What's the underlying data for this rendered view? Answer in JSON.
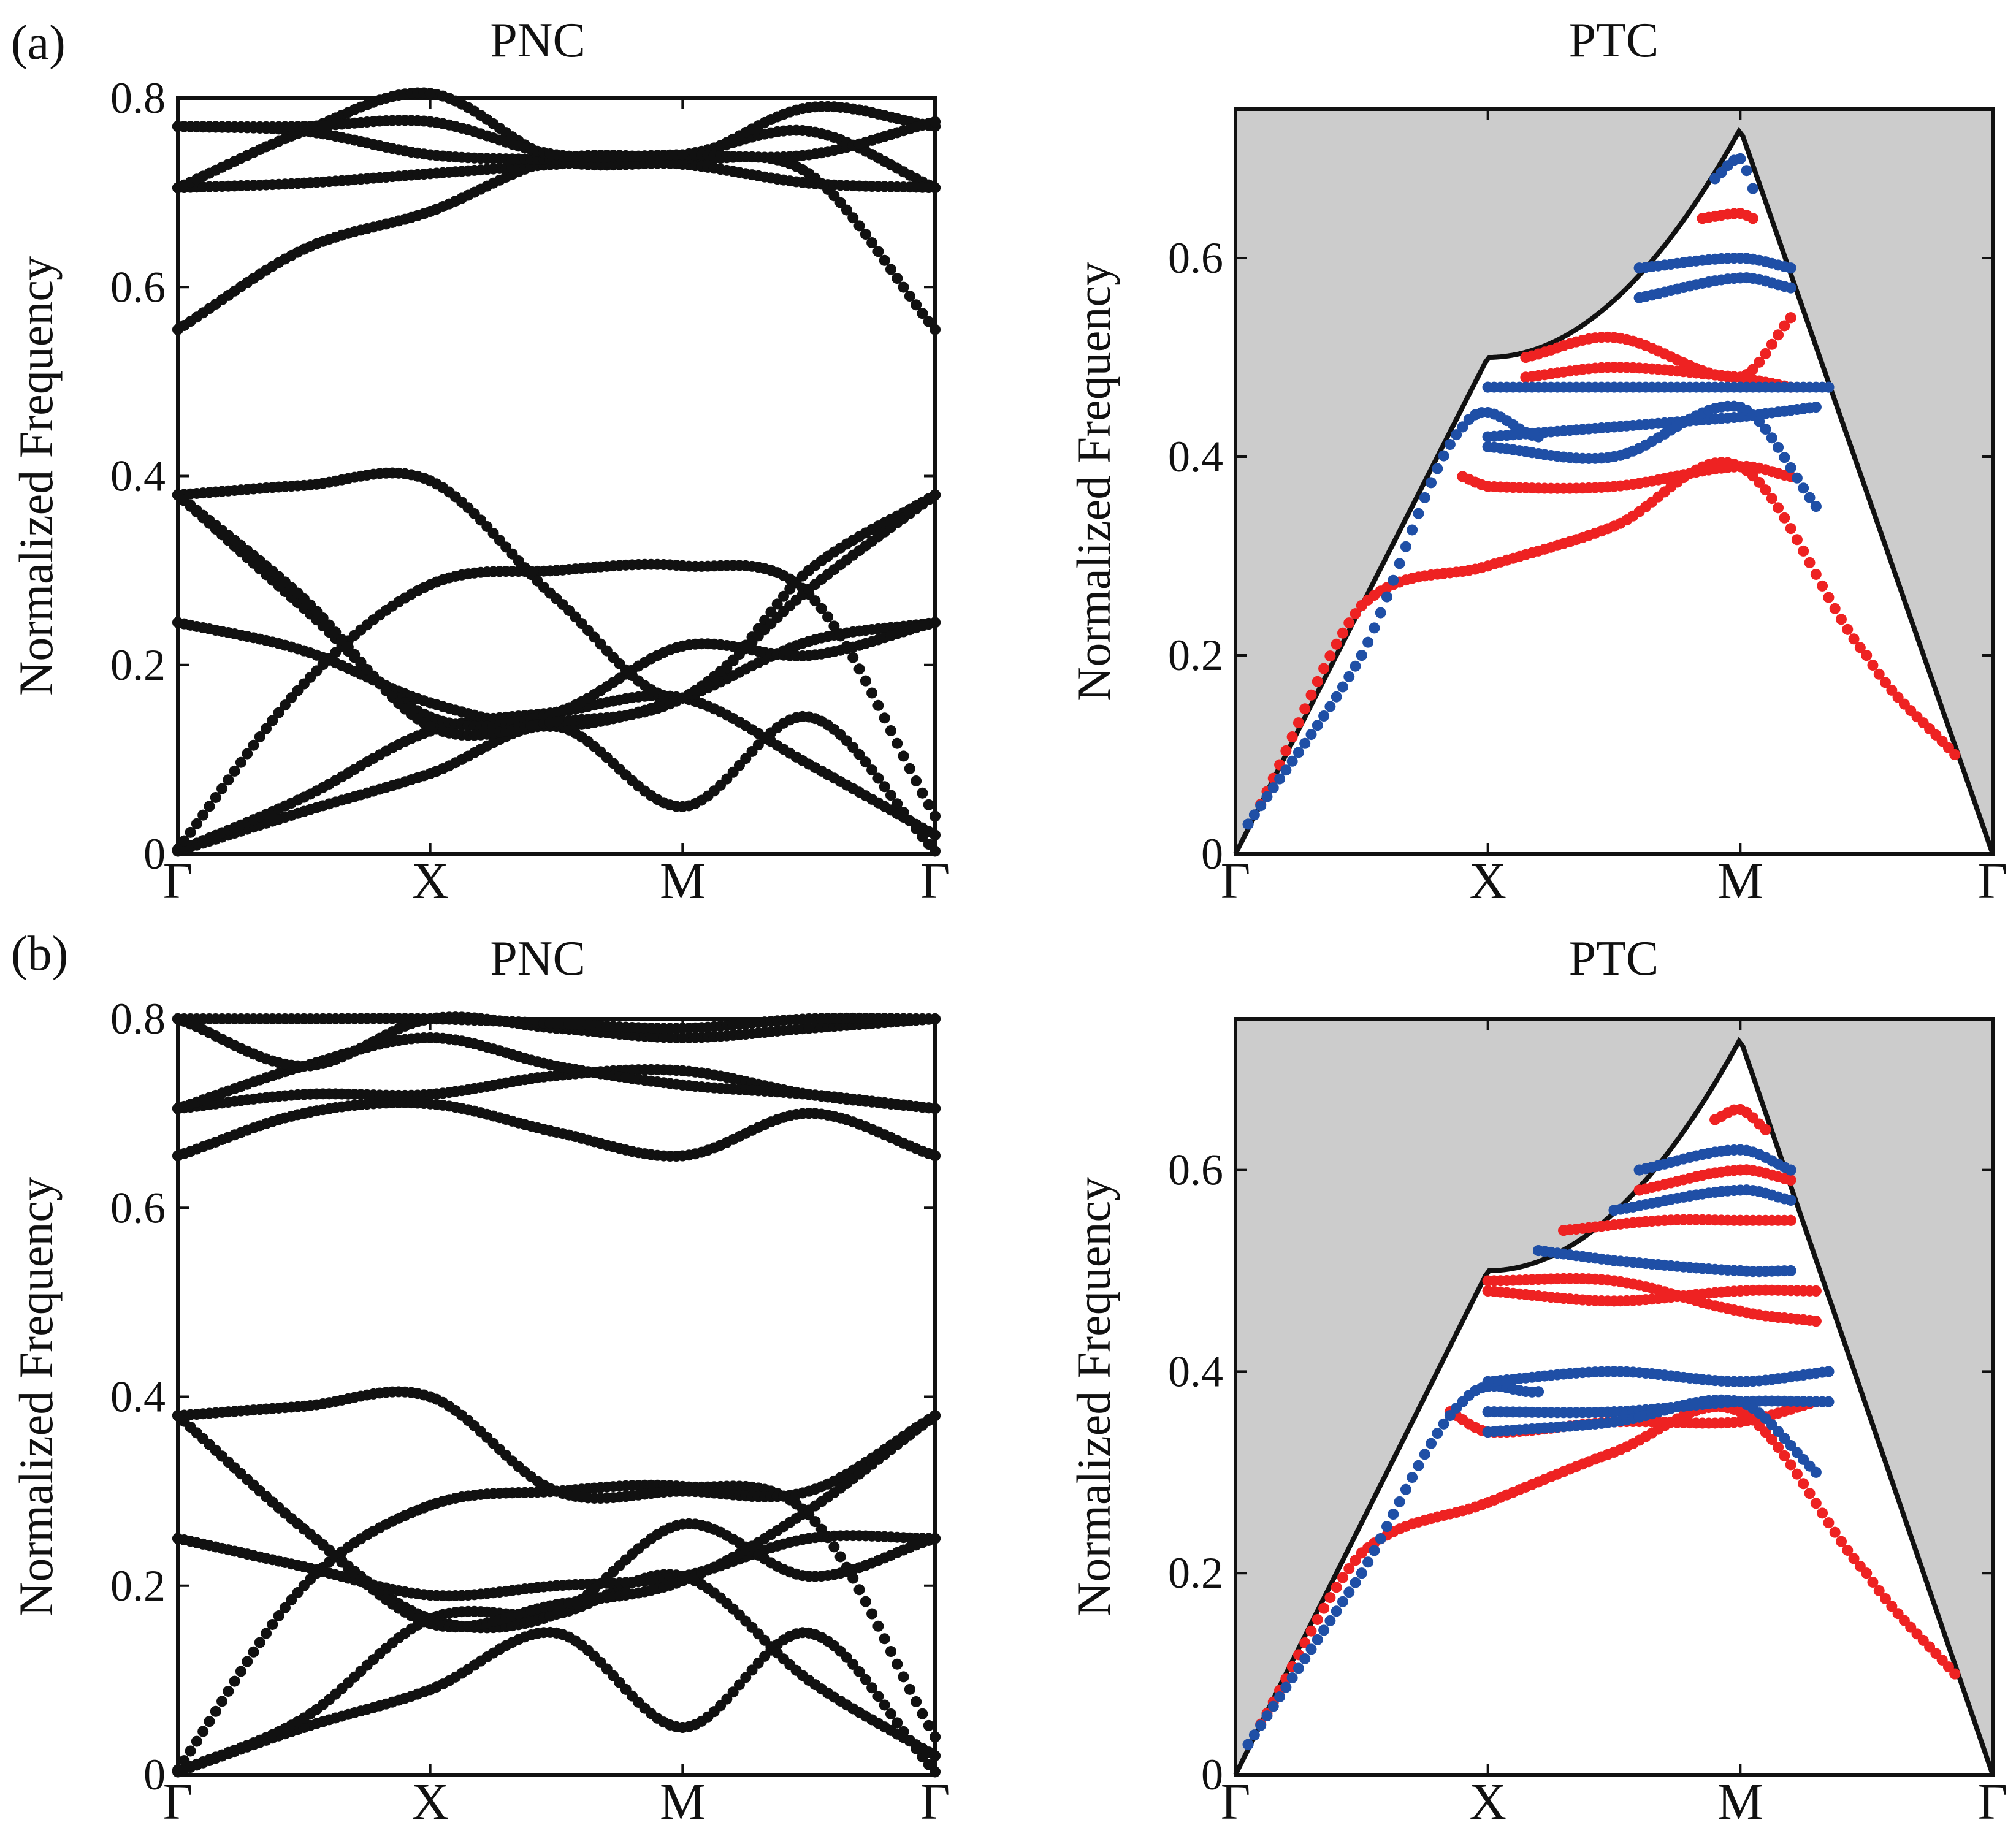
{
  "panels": [
    {
      "label": "(a)"
    },
    {
      "label": "(b)"
    }
  ],
  "colors": {
    "dot_black": "#111111",
    "dot_red": "#ee2222",
    "dot_blue": "#1f4fa6",
    "cone_fill": "#cccccc",
    "axis": "#111111"
  },
  "chart_data": [
    {
      "id": "a_pnc",
      "type": "scatter",
      "title": "PNC",
      "ylabel": "Normalized Frequency",
      "xtick_labels": [
        "Γ",
        "X",
        "M",
        "Γ"
      ],
      "ytick_labels": [
        "0",
        "0.2",
        "0.4",
        "0.6",
        "0.8"
      ],
      "yticks": [
        0,
        0.2,
        0.4,
        0.6,
        0.8
      ],
      "ylim": [
        0,
        0.8
      ],
      "xlim": [
        0,
        3
      ],
      "series": [
        {
          "name": "band1",
          "color": "black",
          "x": [
            0,
            0.5,
            1,
            1.5,
            2,
            2.5,
            3
          ],
          "y": [
            0.003,
            0.045,
            0.085,
            0.135,
            0.05,
            0.145,
            0.003
          ]
        },
        {
          "name": "band2",
          "color": "black",
          "x": [
            0,
            0.5,
            1,
            1.5,
            2,
            2.5,
            3
          ],
          "y": [
            0.003,
            0.06,
            0.13,
            0.15,
            0.165,
            0.095,
            0.02
          ]
        },
        {
          "name": "band3",
          "color": "black",
          "x": [
            0,
            0.5,
            1,
            1.5,
            2,
            2.5,
            3
          ],
          "y": [
            0.005,
            0.18,
            0.285,
            0.3,
            0.305,
            0.275,
            0.04
          ]
        },
        {
          "name": "band4",
          "color": "black",
          "x": [
            0,
            0.5,
            1,
            1.5,
            2,
            2.5,
            3
          ],
          "y": [
            0.245,
            0.215,
            0.16,
            0.135,
            0.165,
            0.225,
            0.245
          ]
        },
        {
          "name": "band5",
          "color": "black",
          "x": [
            0,
            0.5,
            1,
            1.5,
            2,
            2.5,
            3
          ],
          "y": [
            0.38,
            0.26,
            0.145,
            0.15,
            0.22,
            0.21,
            0.245
          ]
        },
        {
          "name": "band6",
          "color": "black",
          "x": [
            0,
            0.5,
            1,
            1.5,
            2,
            2.5,
            3
          ],
          "y": [
            0.38,
            0.39,
            0.395,
            0.27,
            0.165,
            0.3,
            0.38
          ]
        },
        {
          "name": "band7",
          "color": "black",
          "x": [
            0,
            0.5,
            1,
            1.5,
            2,
            2.5,
            3
          ],
          "y": [
            0.38,
            0.27,
            0.135,
            0.14,
            0.165,
            0.28,
            0.38
          ]
        },
        {
          "name": "band8",
          "color": "black",
          "x": [
            0,
            0.5,
            1,
            1.5,
            2,
            2.5,
            3
          ],
          "y": [
            0.555,
            0.64,
            0.68,
            0.735,
            0.735,
            0.72,
            0.555
          ]
        },
        {
          "name": "band9",
          "color": "black",
          "x": [
            0,
            0.5,
            1,
            1.5,
            2,
            2.5,
            3
          ],
          "y": [
            0.705,
            0.71,
            0.72,
            0.73,
            0.74,
            0.765,
            0.705
          ]
        },
        {
          "name": "band10",
          "color": "black",
          "x": [
            0,
            0.5,
            1,
            1.5,
            2,
            2.5,
            3
          ],
          "y": [
            0.705,
            0.765,
            0.805,
            0.735,
            0.73,
            0.71,
            0.705
          ]
        },
        {
          "name": "band11",
          "color": "black",
          "x": [
            0,
            0.5,
            1,
            1.5,
            2,
            2.5,
            3
          ],
          "y": [
            0.77,
            0.765,
            0.74,
            0.735,
            0.735,
            0.79,
            0.77
          ]
        },
        {
          "name": "band12",
          "color": "black",
          "x": [
            0,
            0.5,
            1,
            1.5,
            2,
            2.5,
            3
          ],
          "y": [
            0.77,
            0.77,
            0.775,
            0.74,
            0.74,
            0.74,
            0.775
          ]
        }
      ]
    },
    {
      "id": "a_ptc",
      "type": "scatter",
      "title": "PTC",
      "ylabel": "Normalized Frequency",
      "xtick_labels": [
        "Γ",
        "X",
        "M",
        "Γ"
      ],
      "ytick_labels": [
        "0",
        "0.2",
        "0.4",
        "0.6"
      ],
      "yticks": [
        0,
        0.2,
        0.4,
        0.6
      ],
      "ylim": [
        0,
        0.75
      ],
      "xlim": [
        0,
        3
      ],
      "light_cone": {
        "x": [
          0,
          1,
          1.5,
          2,
          3
        ],
        "y": [
          0,
          0.5,
          0.55,
          0.73,
          0
        ]
      },
      "series": [
        {
          "name": "red1",
          "color": "red",
          "x": [
            0.1,
            0.5,
            1,
            1.5,
            2,
            2.5,
            2.85
          ],
          "y": [
            0.05,
            0.25,
            0.29,
            0.33,
            0.39,
            0.2,
            0.1
          ]
        },
        {
          "name": "red2",
          "color": "red",
          "x": [
            0.9,
            1,
            1.5,
            2,
            2.2
          ],
          "y": [
            0.38,
            0.37,
            0.37,
            0.39,
            0.38
          ]
        },
        {
          "name": "red3",
          "color": "red",
          "x": [
            1.15,
            1.5,
            2,
            2.2
          ],
          "y": [
            0.5,
            0.52,
            0.48,
            0.54
          ]
        },
        {
          "name": "red4",
          "color": "red",
          "x": [
            1.15,
            1.5,
            2,
            2.2
          ],
          "y": [
            0.48,
            0.49,
            0.48,
            0.47
          ]
        },
        {
          "name": "red5",
          "color": "red",
          "x": [
            1.85,
            2,
            2.05
          ],
          "y": [
            0.64,
            0.645,
            0.64
          ]
        },
        {
          "name": "blue1",
          "color": "blue",
          "x": [
            0.05,
            0.5,
            0.9,
            1.2
          ],
          "y": [
            0.03,
            0.2,
            0.43,
            0.42
          ]
        },
        {
          "name": "blue2",
          "color": "blue",
          "x": [
            1,
            1.5,
            2,
            2.35
          ],
          "y": [
            0.47,
            0.47,
            0.47,
            0.47
          ]
        },
        {
          "name": "blue3",
          "color": "blue",
          "x": [
            1,
            1.5,
            2,
            2.3
          ],
          "y": [
            0.42,
            0.43,
            0.44,
            0.45
          ]
        },
        {
          "name": "blue4",
          "color": "blue",
          "x": [
            1,
            1.5,
            2,
            2.3
          ],
          "y": [
            0.41,
            0.4,
            0.45,
            0.35
          ]
        },
        {
          "name": "blue5",
          "color": "blue",
          "x": [
            1.6,
            2,
            2.2
          ],
          "y": [
            0.56,
            0.58,
            0.57
          ]
        },
        {
          "name": "blue6",
          "color": "blue",
          "x": [
            1.6,
            2,
            2.2
          ],
          "y": [
            0.59,
            0.6,
            0.59
          ]
        },
        {
          "name": "blue7",
          "color": "blue",
          "x": [
            1.9,
            2,
            2.05
          ],
          "y": [
            0.68,
            0.7,
            0.67
          ]
        }
      ]
    },
    {
      "id": "b_pnc",
      "type": "scatter",
      "title": "PNC",
      "ylabel": "Normalized Frequency",
      "xtick_labels": [
        "Γ",
        "X",
        "M",
        "Γ"
      ],
      "ytick_labels": [
        "0",
        "0.2",
        "0.4",
        "0.6",
        "0.8"
      ],
      "yticks": [
        0,
        0.2,
        0.4,
        0.6,
        0.8
      ],
      "ylim": [
        0,
        0.8
      ],
      "xlim": [
        0,
        3
      ],
      "series": [
        {
          "name": "band1",
          "color": "black",
          "x": [
            0,
            0.5,
            1,
            1.5,
            2,
            2.5,
            3
          ],
          "y": [
            0.003,
            0.05,
            0.09,
            0.15,
            0.05,
            0.15,
            0.003
          ]
        },
        {
          "name": "band2",
          "color": "black",
          "x": [
            0,
            0.5,
            1,
            1.5,
            2,
            2.5,
            3
          ],
          "y": [
            0.003,
            0.06,
            0.165,
            0.17,
            0.21,
            0.1,
            0.02
          ]
        },
        {
          "name": "band3",
          "color": "black",
          "x": [
            0,
            0.5,
            1,
            1.5,
            2,
            2.5,
            3
          ],
          "y": [
            0.005,
            0.2,
            0.285,
            0.3,
            0.305,
            0.275,
            0.04
          ]
        },
        {
          "name": "band4",
          "color": "black",
          "x": [
            0,
            0.5,
            1,
            1.5,
            2,
            2.5,
            3
          ],
          "y": [
            0.25,
            0.22,
            0.19,
            0.2,
            0.21,
            0.25,
            0.25
          ]
        },
        {
          "name": "band5",
          "color": "black",
          "x": [
            0,
            0.5,
            1,
            1.5,
            2,
            2.5,
            3
          ],
          "y": [
            0.38,
            0.26,
            0.165,
            0.17,
            0.265,
            0.21,
            0.25
          ]
        },
        {
          "name": "band6",
          "color": "black",
          "x": [
            0,
            0.5,
            1,
            1.5,
            2,
            2.5,
            3
          ],
          "y": [
            0.38,
            0.39,
            0.4,
            0.3,
            0.3,
            0.3,
            0.38
          ]
        },
        {
          "name": "band7",
          "color": "black",
          "x": [
            0,
            0.5,
            1,
            1.5,
            2,
            2.5,
            3
          ],
          "y": [
            0.38,
            0.26,
            0.16,
            0.18,
            0.205,
            0.28,
            0.38
          ]
        },
        {
          "name": "band8",
          "color": "black",
          "x": [
            0,
            0.5,
            1,
            1.5,
            2,
            2.5,
            3
          ],
          "y": [
            0.655,
            0.7,
            0.71,
            0.68,
            0.655,
            0.7,
            0.655
          ]
        },
        {
          "name": "band9",
          "color": "black",
          "x": [
            0,
            0.5,
            1,
            1.5,
            2,
            2.5,
            3
          ],
          "y": [
            0.705,
            0.72,
            0.72,
            0.74,
            0.745,
            0.72,
            0.705
          ]
        },
        {
          "name": "band10",
          "color": "black",
          "x": [
            0,
            0.5,
            1,
            1.5,
            2,
            2.5,
            3
          ],
          "y": [
            0.705,
            0.75,
            0.78,
            0.75,
            0.73,
            0.72,
            0.705
          ]
        },
        {
          "name": "band11",
          "color": "black",
          "x": [
            0,
            0.5,
            1,
            1.5,
            2,
            2.5,
            3
          ],
          "y": [
            0.8,
            0.75,
            0.8,
            0.79,
            0.78,
            0.79,
            0.8
          ]
        },
        {
          "name": "band12",
          "color": "black",
          "x": [
            0,
            0.5,
            1,
            1.5,
            2,
            2.5,
            3
          ],
          "y": [
            0.8,
            0.8,
            0.8,
            0.795,
            0.79,
            0.8,
            0.8
          ]
        }
      ]
    },
    {
      "id": "b_ptc",
      "type": "scatter",
      "title": "PTC",
      "ylabel": "Normalized Frequency",
      "xtick_labels": [
        "Γ",
        "X",
        "M",
        "Γ"
      ],
      "ytick_labels": [
        "0",
        "0.2",
        "0.4",
        "0.6"
      ],
      "yticks": [
        0,
        0.2,
        0.4,
        0.6
      ],
      "ylim": [
        0,
        0.75
      ],
      "xlim": [
        0,
        3
      ],
      "light_cone": {
        "x": [
          0,
          1,
          1.5,
          2,
          3
        ],
        "y": [
          0,
          0.5,
          0.55,
          0.73,
          0
        ]
      },
      "series": [
        {
          "name": "red1",
          "color": "red",
          "x": [
            0.1,
            0.5,
            1,
            1.5,
            2,
            2.5,
            2.85
          ],
          "y": [
            0.05,
            0.22,
            0.27,
            0.32,
            0.36,
            0.2,
            0.1
          ]
        },
        {
          "name": "red2",
          "color": "red",
          "x": [
            0.85,
            1,
            1.5,
            2,
            2.3
          ],
          "y": [
            0.36,
            0.34,
            0.35,
            0.35,
            0.37
          ]
        },
        {
          "name": "red3",
          "color": "red",
          "x": [
            1,
            1.5,
            2,
            2.3
          ],
          "y": [
            0.49,
            0.49,
            0.46,
            0.45
          ]
        },
        {
          "name": "red4",
          "color": "red",
          "x": [
            1,
            1.5,
            2,
            2.3
          ],
          "y": [
            0.48,
            0.47,
            0.48,
            0.48
          ]
        },
        {
          "name": "red5",
          "color": "red",
          "x": [
            1.3,
            1.7,
            2,
            2.2
          ],
          "y": [
            0.54,
            0.55,
            0.55,
            0.55
          ]
        },
        {
          "name": "red6",
          "color": "red",
          "x": [
            1.6,
            2,
            2.2
          ],
          "y": [
            0.58,
            0.6,
            0.59
          ]
        },
        {
          "name": "red7",
          "color": "red",
          "x": [
            1.9,
            2,
            2.1
          ],
          "y": [
            0.65,
            0.66,
            0.64
          ]
        },
        {
          "name": "blue1",
          "color": "blue",
          "x": [
            0.05,
            0.5,
            0.9,
            1.2
          ],
          "y": [
            0.03,
            0.2,
            0.37,
            0.38
          ]
        },
        {
          "name": "blue2",
          "color": "blue",
          "x": [
            1,
            1.5,
            2,
            2.35
          ],
          "y": [
            0.39,
            0.4,
            0.39,
            0.4
          ]
        },
        {
          "name": "blue3",
          "color": "blue",
          "x": [
            1,
            1.5,
            2,
            2.35
          ],
          "y": [
            0.36,
            0.36,
            0.37,
            0.37
          ]
        },
        {
          "name": "blue4",
          "color": "blue",
          "x": [
            1,
            1.5,
            2,
            2.3
          ],
          "y": [
            0.34,
            0.35,
            0.37,
            0.3
          ]
        },
        {
          "name": "blue5",
          "color": "blue",
          "x": [
            1.2,
            1.5,
            2,
            2.2
          ],
          "y": [
            0.52,
            0.51,
            0.5,
            0.5
          ]
        },
        {
          "name": "blue6",
          "color": "blue",
          "x": [
            1.5,
            2,
            2.2
          ],
          "y": [
            0.56,
            0.58,
            0.57
          ]
        },
        {
          "name": "blue7",
          "color": "blue",
          "x": [
            1.6,
            2,
            2.2
          ],
          "y": [
            0.6,
            0.62,
            0.6
          ]
        }
      ]
    }
  ]
}
